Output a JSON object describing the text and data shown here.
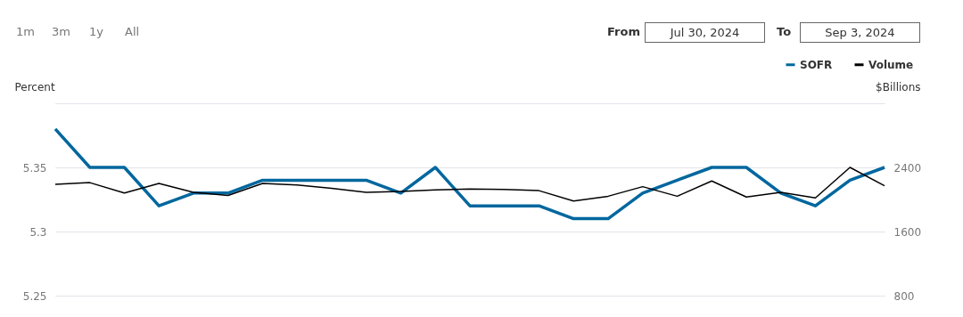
{
  "chart_data": {
    "type": "line",
    "categories": [
      null,
      null,
      null,
      null,
      null,
      null,
      null,
      null,
      null,
      null,
      null,
      null,
      null,
      null,
      null,
      null,
      null,
      null,
      null,
      null,
      null,
      null,
      null,
      null,
      null
    ],
    "series": [
      {
        "name": "SOFR",
        "color": "#00679e",
        "values": [
          5.38,
          5.35,
          5.35,
          5.32,
          5.33,
          5.33,
          5.34,
          5.34,
          5.34,
          5.34,
          5.33,
          5.35,
          5.32,
          5.32,
          5.32,
          5.31,
          5.31,
          5.33,
          5.34,
          5.35,
          5.35,
          5.33,
          5.32,
          5.34,
          5.35
        ]
      },
      {
        "name": "Volume",
        "color": "#000000",
        "axis": "y2",
        "values": [
          2190,
          2210,
          2080,
          2200,
          2090,
          2050,
          2200,
          2180,
          2140,
          2090,
          2100,
          2120,
          2130,
          2125,
          2110,
          1980,
          2040,
          2160,
          2040,
          2230,
          2030,
          2090,
          2020,
          2400,
          2170
        ]
      }
    ],
    "ylabel": "Percent",
    "y2label": "$Billions",
    "ylim": [
      5.25,
      5.4
    ],
    "yticks": [
      5.25,
      5.3,
      5.35,
      {
        "value": 5.4,
        "label": null
      }
    ],
    "y2lim": [
      800,
      3200
    ],
    "y2ticks": [
      800,
      1600,
      2400,
      {
        "value": 3200,
        "label": null
      }
    ],
    "grid": "y",
    "legend": "top right",
    "tick_labels": "y",
    "annotations": [
      "1m",
      "3m",
      "1y",
      "All",
      "From",
      "Jul 30, 2024",
      "To",
      "Sep 3, 2024"
    ]
  }
}
